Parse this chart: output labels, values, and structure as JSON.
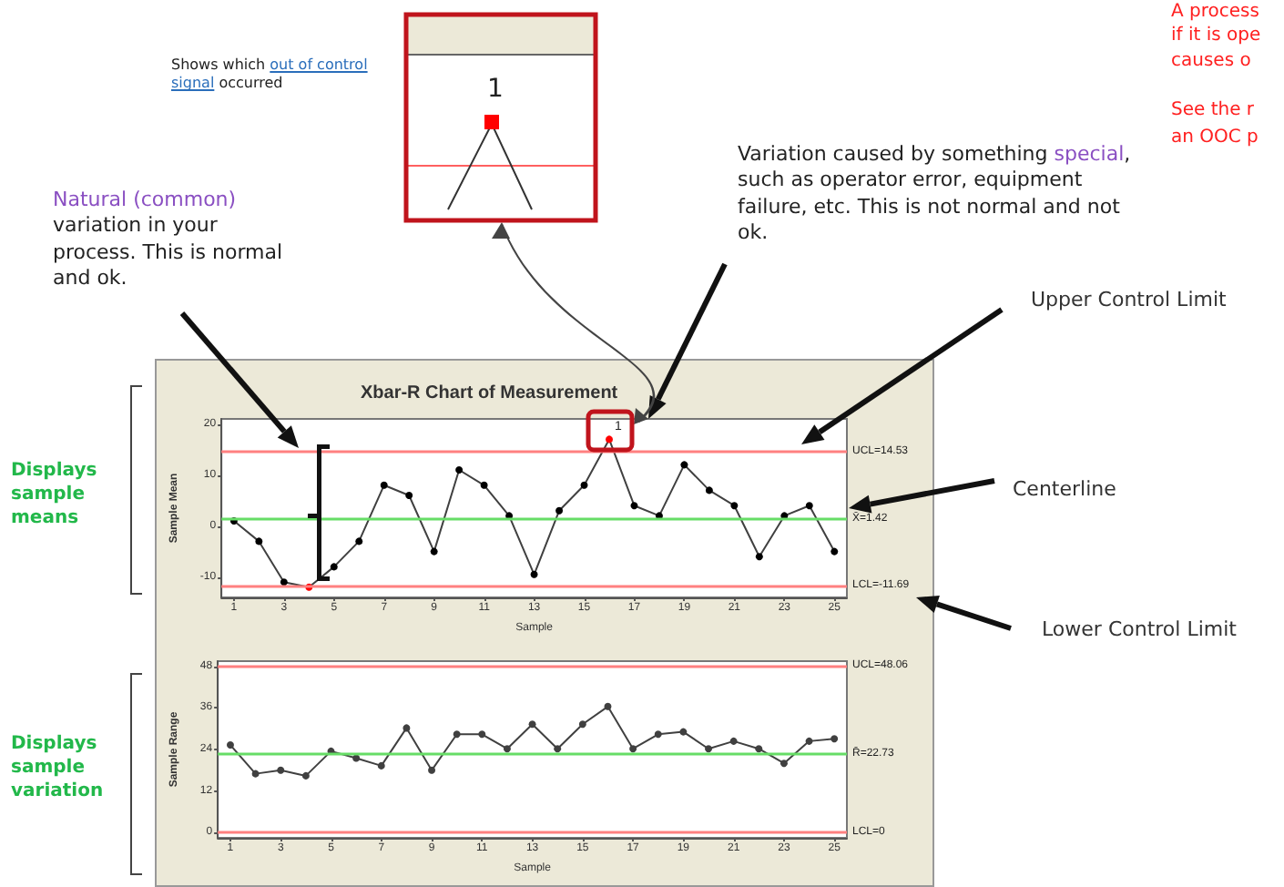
{
  "chart_data": [
    {
      "type": "line",
      "title": "Xbar-R Chart of Measurement",
      "xlabel": "Sample",
      "ylabel": "Sample Mean",
      "x": [
        1,
        2,
        3,
        4,
        5,
        6,
        7,
        8,
        9,
        10,
        11,
        12,
        13,
        14,
        15,
        16,
        17,
        18,
        19,
        20,
        21,
        22,
        23,
        24,
        25
      ],
      "series": [
        {
          "color": "#404040",
          "colors": [
            "#000000",
            "#000000",
            "#000000",
            "#ff0000",
            "#000000",
            "#000000",
            "#000000",
            "#000000",
            "#000000",
            "#000000",
            "#000000",
            "#000000",
            "#000000",
            "#000000",
            "#000000",
            "#ff0000",
            "#000000",
            "#000000",
            "#000000",
            "#000000",
            "#000000",
            "#000000",
            "#000000",
            "#000000",
            "#000000"
          ],
          "values": [
            1,
            -3,
            -11,
            -12,
            -8,
            -3,
            8,
            6,
            -5,
            11,
            8,
            2,
            -9.5,
            3,
            8,
            17,
            4,
            2,
            12,
            7,
            4,
            -6,
            2,
            4,
            -5
          ]
        }
      ],
      "xlim": [
        0.5,
        25.5
      ],
      "xticks": [
        1,
        3,
        5,
        7,
        9,
        11,
        13,
        15,
        17,
        19,
        21,
        23,
        25
      ],
      "ylim": [
        -14,
        21
      ],
      "yticks": [
        -10,
        0,
        10,
        20
      ],
      "marker": "circle",
      "grid": false,
      "ref_lines": [
        {
          "axis": "y",
          "value": 14.53,
          "label": "UCL=14.53",
          "color": "#ff8080"
        },
        {
          "axis": "y",
          "value": 1.42,
          "label": "X̄=1.42",
          "color": "#66dd66"
        },
        {
          "axis": "y",
          "value": -11.69,
          "label": "LCL=-11.69",
          "color": "#ff8080"
        }
      ],
      "annotations": [
        "Shows which",
        "out of control signal",
        "occurred",
        "1",
        "Natural (common)",
        "variation in your process.  This is normal and ok.",
        "Variation caused by something",
        "special",
        ", such as operator error, equipment failure, etc.  This is not normal and not ok.",
        "Upper Control Limit",
        "Centerline",
        "Lower Control Limit",
        "Displays sample means",
        "Displays sample variation",
        "A process",
        "if it is ope",
        "causes o",
        "See the r",
        "an OOC p",
        {
          "text": "1",
          "x": 16,
          "y": 17
        }
      ]
    },
    {
      "type": "line",
      "xlabel": "Sample",
      "ylabel": "Sample Range",
      "x": [
        1,
        2,
        3,
        4,
        5,
        6,
        7,
        8,
        9,
        10,
        11,
        12,
        13,
        14,
        15,
        16,
        17,
        18,
        19,
        20,
        21,
        22,
        23,
        24,
        25
      ],
      "series": [
        {
          "color": "#404040",
          "values": [
            25.3,
            17,
            18,
            16.4,
            23.5,
            21.5,
            19.3,
            30.2,
            18,
            28.4,
            28.4,
            24.2,
            31.3,
            24.2,
            31.3,
            36.4,
            24.2,
            28.4,
            29.1,
            24.2,
            26.4,
            24.2,
            20,
            26.4,
            27.1
          ]
        }
      ],
      "xlim": [
        0.5,
        25.5
      ],
      "xticks": [
        1,
        3,
        5,
        7,
        9,
        11,
        13,
        15,
        17,
        19,
        21,
        23,
        25
      ],
      "ylim": [
        -1.5,
        49.5
      ],
      "yticks": [
        0,
        12,
        24,
        36,
        48
      ],
      "marker": "circle",
      "grid": false,
      "ref_lines": [
        {
          "axis": "y",
          "value": 48.06,
          "label": "UCL=48.06",
          "color": "#ff8080"
        },
        {
          "axis": "y",
          "value": 22.73,
          "label": "R̄=22.73",
          "color": "#66dd66"
        },
        {
          "axis": "y",
          "value": 0,
          "label": "LCL=0",
          "color": "#ff8080"
        }
      ]
    }
  ]
}
